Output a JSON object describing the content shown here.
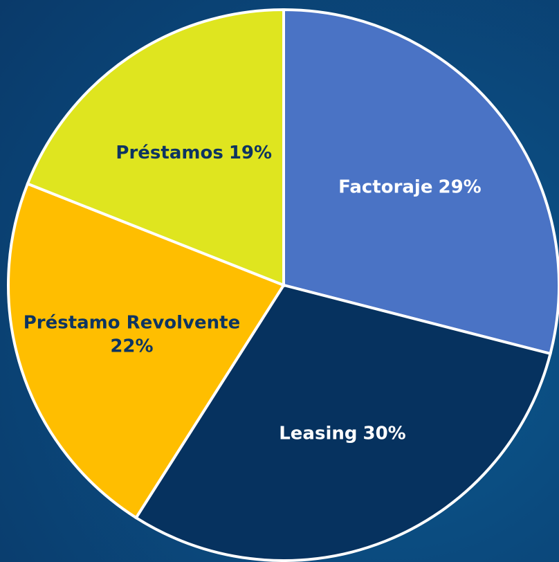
{
  "chart_data": {
    "type": "pie",
    "categories": [
      "Factoraje",
      "Leasing",
      "Préstamo Revolvente",
      "Préstamos"
    ],
    "values": [
      29,
      30,
      22,
      19
    ],
    "value_labels": [
      "29%",
      "30%",
      "22%",
      "19%"
    ],
    "colors": [
      "#4a73c5",
      "#06325f",
      "#ffbe00",
      "#dfe51f"
    ]
  }
}
